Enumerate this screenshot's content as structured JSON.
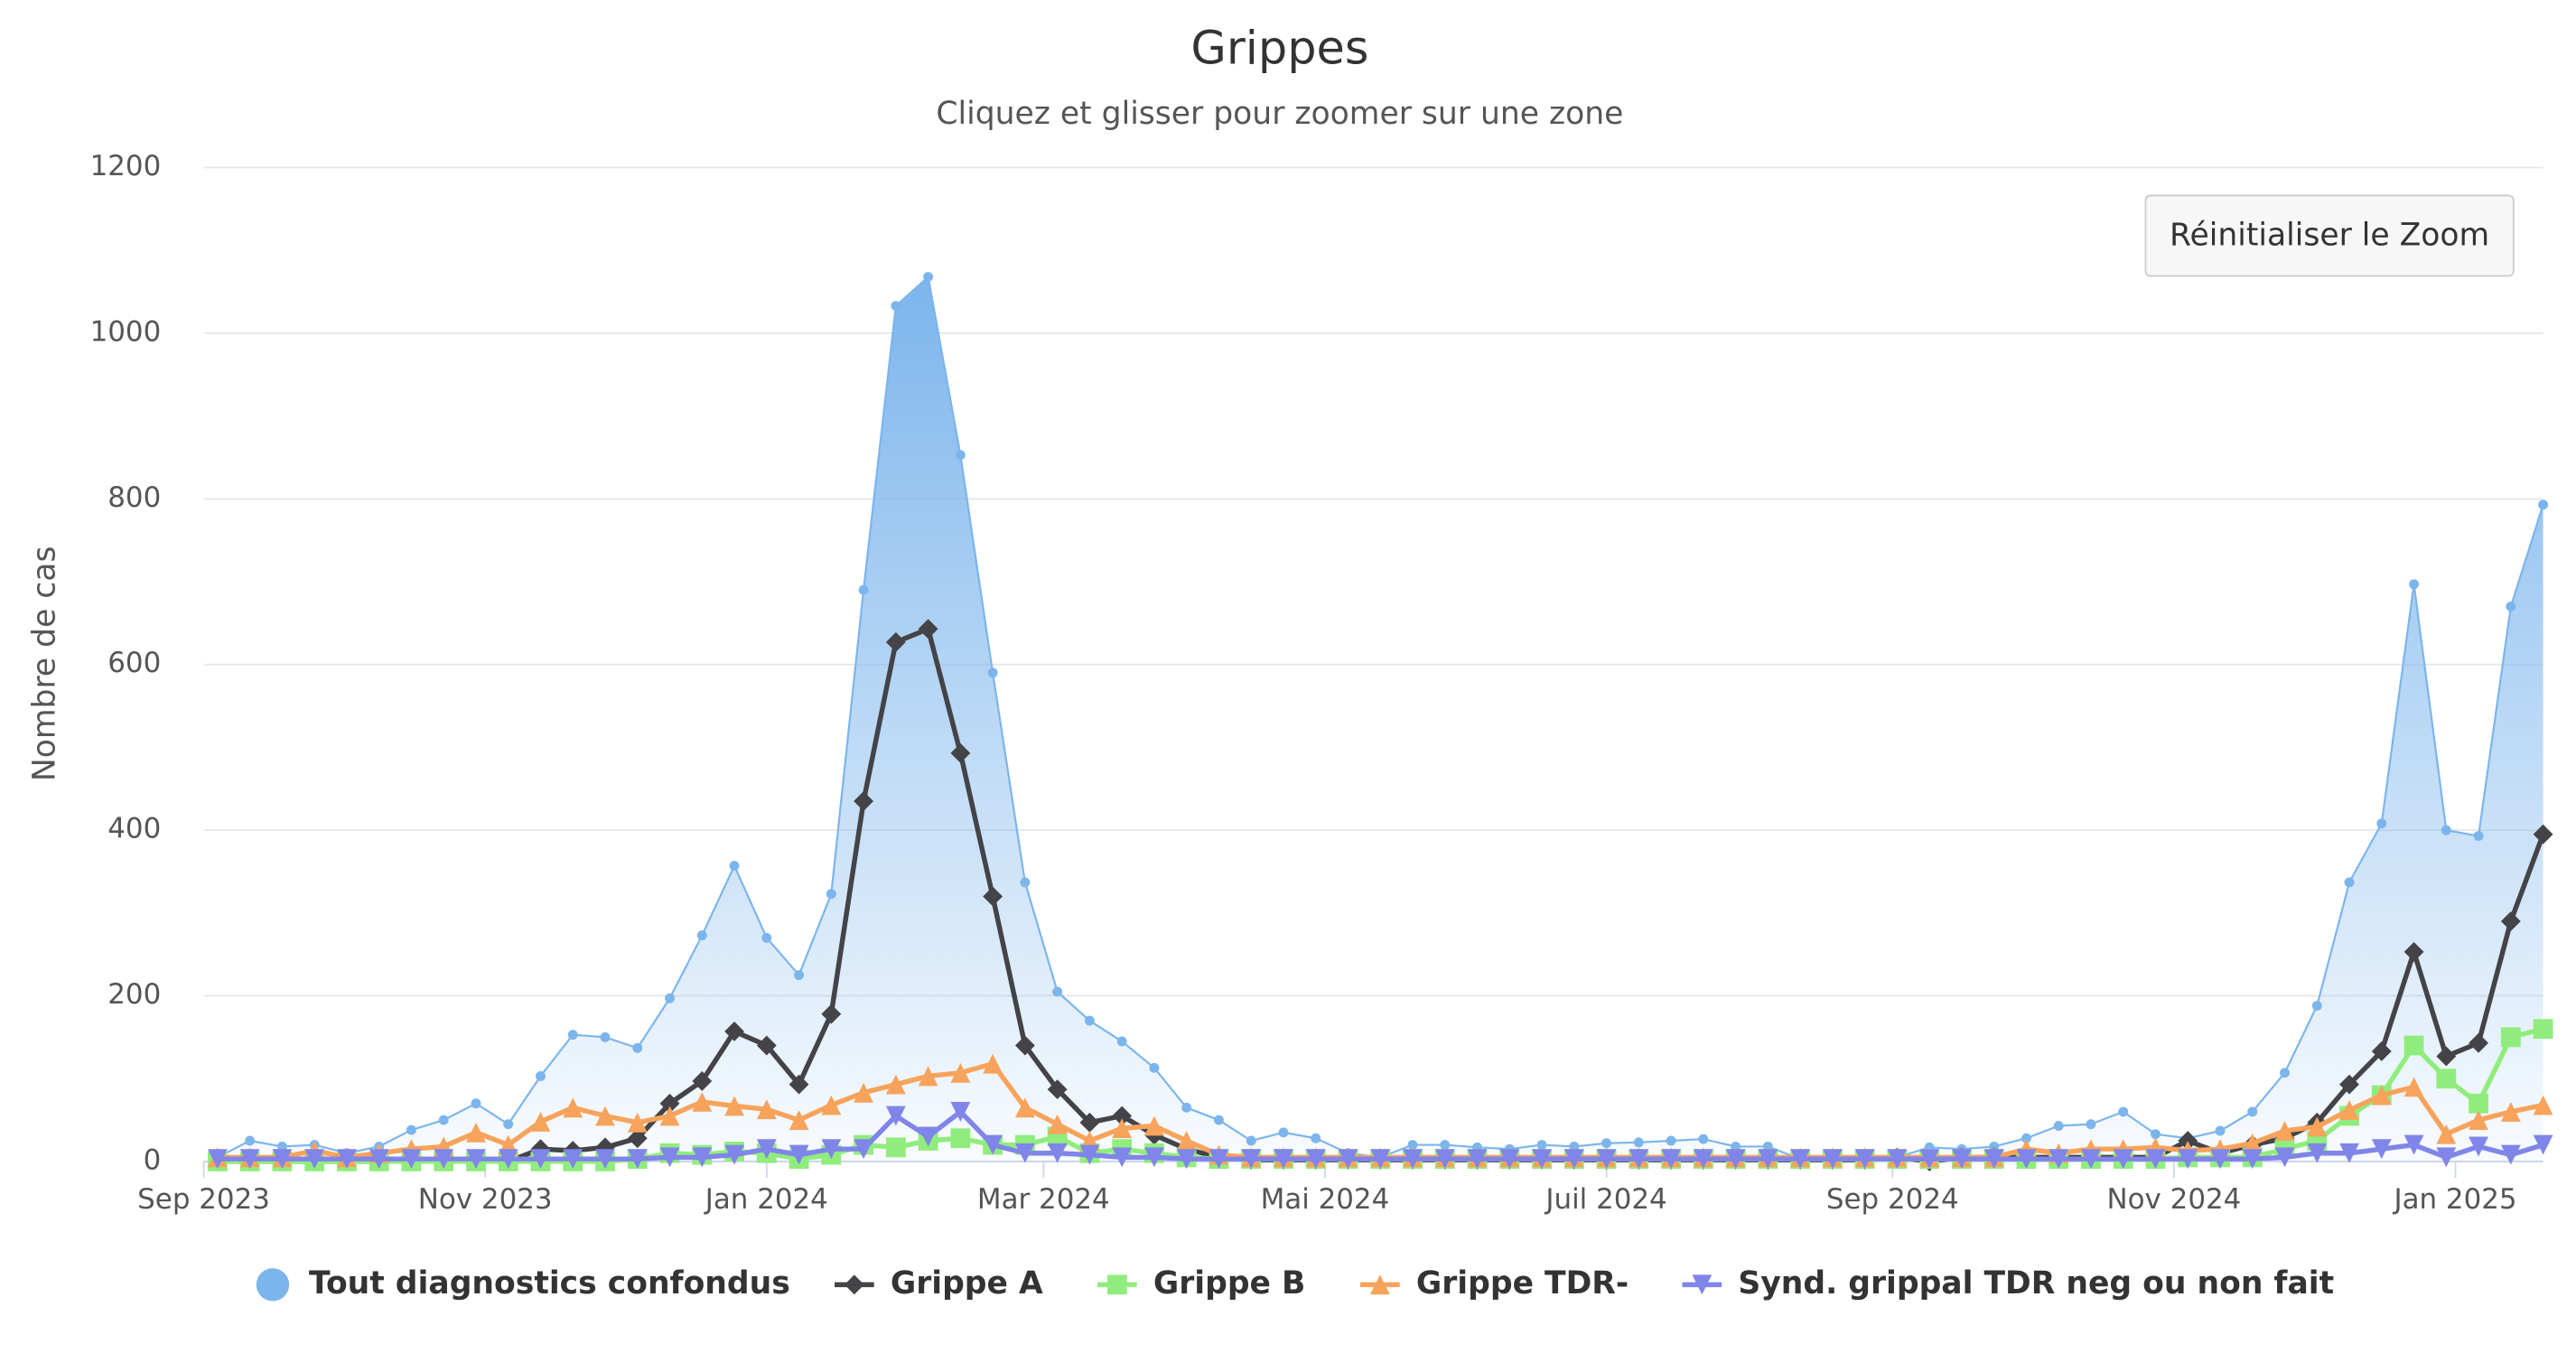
{
  "chart_data": {
    "type": "line",
    "title": "Grippes",
    "subtitle": "Cliquez et glisser pour zoomer sur une zone",
    "y_label": "Nombre de cas",
    "reset_button": "Réinitialiser le Zoom",
    "x": [
      "2023-09-04",
      "2023-09-11",
      "2023-09-18",
      "2023-09-25",
      "2023-10-02",
      "2023-10-09",
      "2023-10-16",
      "2023-10-23",
      "2023-10-30",
      "2023-11-06",
      "2023-11-13",
      "2023-11-20",
      "2023-11-27",
      "2023-12-04",
      "2023-12-11",
      "2023-12-18",
      "2023-12-25",
      "2024-01-01",
      "2024-01-08",
      "2024-01-15",
      "2024-01-22",
      "2024-01-29",
      "2024-02-05",
      "2024-02-12",
      "2024-02-19",
      "2024-02-26",
      "2024-03-04",
      "2024-03-11",
      "2024-03-18",
      "2024-03-25",
      "2024-04-01",
      "2024-04-08",
      "2024-04-15",
      "2024-04-22",
      "2024-04-29",
      "2024-05-06",
      "2024-05-13",
      "2024-05-20",
      "2024-05-27",
      "2024-06-03",
      "2024-06-10",
      "2024-06-17",
      "2024-06-24",
      "2024-07-01",
      "2024-07-08",
      "2024-07-15",
      "2024-07-22",
      "2024-07-29",
      "2024-08-05",
      "2024-08-12",
      "2024-08-19",
      "2024-08-26",
      "2024-09-02",
      "2024-09-09",
      "2024-09-16",
      "2024-09-23",
      "2024-09-30",
      "2024-10-07",
      "2024-10-14",
      "2024-10-21",
      "2024-10-28",
      "2024-11-04",
      "2024-11-11",
      "2024-11-18",
      "2024-11-25",
      "2024-12-02",
      "2024-12-09",
      "2024-12-16",
      "2024-12-23",
      "2024-12-30",
      "2025-01-06",
      "2025-01-13",
      "2025-01-20"
    ],
    "xlim": [
      "2023-09-01",
      "2025-01-20"
    ],
    "xticks": [
      {
        "value": "2023-09-01",
        "label": "Sep 2023"
      },
      {
        "value": "2023-11-01",
        "label": "Nov 2023"
      },
      {
        "value": "2024-01-01",
        "label": "Jan 2024"
      },
      {
        "value": "2024-03-01",
        "label": "Mar 2024"
      },
      {
        "value": "2024-05-01",
        "label": "Mai 2024"
      },
      {
        "value": "2024-07-01",
        "label": "Juil 2024"
      },
      {
        "value": "2024-09-01",
        "label": "Sep 2024"
      },
      {
        "value": "2024-11-01",
        "label": "Nov 2024"
      },
      {
        "value": "2025-01-01",
        "label": "Jan 2025"
      }
    ],
    "ylim": [
      0,
      1200
    ],
    "yticks": [
      0,
      200,
      400,
      600,
      800,
      1000,
      1200
    ],
    "grid": true,
    "legend": "bottom",
    "series": [
      {
        "name": "Tout diagnostics confondus",
        "color": "#7cb5ec",
        "marker": "circle",
        "area": true,
        "values": [
          5,
          25,
          18,
          20,
          10,
          18,
          38,
          50,
          70,
          45,
          103,
          153,
          150,
          137,
          197,
          273,
          357,
          270,
          225,
          323,
          690,
          1033,
          1068,
          853,
          590,
          337,
          205,
          170,
          145,
          113,
          65,
          50,
          25,
          35,
          28,
          10,
          5,
          20,
          20,
          17,
          15,
          20,
          18,
          22,
          23,
          25,
          27,
          18,
          18,
          3,
          5,
          3,
          5,
          17,
          15,
          18,
          28,
          43,
          45,
          60,
          33,
          28,
          37,
          60,
          107,
          188,
          337,
          408,
          697,
          400,
          393,
          670,
          793
        ]
      },
      {
        "name": "Grippe A",
        "color": "#434348",
        "marker": "diamond",
        "values": [
          0,
          0,
          0,
          0,
          0,
          0,
          3,
          3,
          3,
          0,
          15,
          13,
          17,
          28,
          70,
          97,
          157,
          140,
          93,
          178,
          435,
          627,
          643,
          493,
          320,
          140,
          87,
          47,
          55,
          32,
          15,
          5,
          2,
          2,
          2,
          2,
          2,
          2,
          2,
          2,
          2,
          2,
          2,
          2,
          2,
          2,
          2,
          2,
          2,
          2,
          2,
          2,
          5,
          0,
          5,
          5,
          5,
          5,
          5,
          5,
          5,
          25,
          10,
          20,
          28,
          47,
          93,
          133,
          253,
          127,
          143,
          290,
          395
        ]
      },
      {
        "name": "Grippe B",
        "color": "#90ed7d",
        "marker": "square",
        "values": [
          0,
          0,
          0,
          0,
          0,
          0,
          0,
          0,
          0,
          0,
          0,
          0,
          0,
          3,
          10,
          8,
          12,
          10,
          3,
          8,
          20,
          17,
          25,
          28,
          20,
          20,
          30,
          10,
          15,
          10,
          5,
          3,
          3,
          3,
          3,
          3,
          3,
          3,
          3,
          3,
          3,
          3,
          3,
          3,
          3,
          3,
          3,
          3,
          3,
          3,
          3,
          3,
          3,
          3,
          3,
          3,
          3,
          3,
          3,
          3,
          3,
          5,
          5,
          5,
          15,
          25,
          55,
          80,
          140,
          100,
          70,
          150,
          160
        ]
      },
      {
        "name": "Grippe TDR-",
        "color": "#f7a35c",
        "marker": "triangle",
        "values": [
          5,
          5,
          5,
          13,
          5,
          10,
          15,
          18,
          35,
          20,
          48,
          65,
          55,
          47,
          55,
          72,
          67,
          63,
          50,
          68,
          83,
          93,
          103,
          107,
          118,
          65,
          45,
          25,
          40,
          43,
          25,
          8,
          5,
          5,
          5,
          5,
          5,
          5,
          5,
          5,
          5,
          5,
          5,
          5,
          5,
          5,
          5,
          5,
          5,
          5,
          5,
          5,
          5,
          5,
          5,
          5,
          15,
          10,
          15,
          15,
          17,
          13,
          15,
          22,
          37,
          42,
          62,
          80,
          90,
          33,
          50,
          60,
          68
        ]
      },
      {
        "name": "Synd. grippal TDR neg ou non fait",
        "color": "#8085e9",
        "marker": "triangle-down",
        "values": [
          3,
          3,
          3,
          3,
          3,
          3,
          3,
          3,
          3,
          3,
          3,
          3,
          3,
          3,
          5,
          5,
          8,
          15,
          8,
          15,
          15,
          55,
          30,
          60,
          20,
          10,
          10,
          8,
          5,
          5,
          3,
          3,
          3,
          3,
          3,
          3,
          3,
          3,
          3,
          3,
          3,
          3,
          3,
          3,
          3,
          3,
          3,
          3,
          3,
          3,
          3,
          3,
          3,
          3,
          3,
          3,
          3,
          3,
          3,
          3,
          3,
          3,
          3,
          3,
          5,
          10,
          10,
          15,
          20,
          5,
          18,
          8,
          20
        ]
      }
    ]
  }
}
